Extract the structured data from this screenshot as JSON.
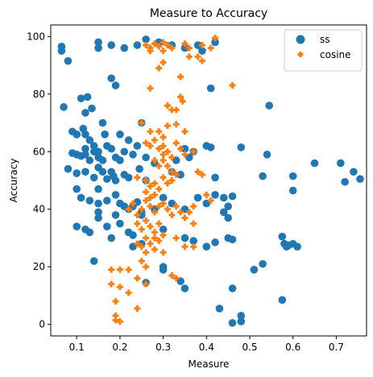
{
  "chart_data": {
    "type": "scatter",
    "title": "Measure to Accuracy",
    "xlabel": "Measure",
    "ylabel": "Accuracy",
    "xlim": [
      0.04,
      0.77
    ],
    "ylim": [
      -4,
      104
    ],
    "xticks": [
      0.1,
      0.2,
      0.3,
      0.4,
      0.5,
      0.6,
      0.7
    ],
    "xtick_labels": [
      "0.1",
      "0.2",
      "0.3",
      "0.4",
      "0.5",
      "0.6",
      "0.7"
    ],
    "yticks": [
      0,
      20,
      40,
      60,
      80,
      100
    ],
    "ytick_labels": [
      "0",
      "20",
      "40",
      "60",
      "80",
      "100"
    ],
    "grid": false,
    "legend": "top-right",
    "series": [
      {
        "name": "ss",
        "marker": "circle",
        "color": "#1f77b4",
        "points": [
          [
            0.065,
            96.5
          ],
          [
            0.065,
            95
          ],
          [
            0.08,
            91.5
          ],
          [
            0.15,
            98
          ],
          [
            0.15,
            96
          ],
          [
            0.18,
            97
          ],
          [
            0.21,
            96
          ],
          [
            0.24,
            97
          ],
          [
            0.26,
            99
          ],
          [
            0.29,
            98
          ],
          [
            0.32,
            97
          ],
          [
            0.35,
            96
          ],
          [
            0.38,
            97
          ],
          [
            0.42,
            98
          ],
          [
            0.39,
            95
          ],
          [
            0.07,
            75.5
          ],
          [
            0.11,
            78.5
          ],
          [
            0.12,
            73.5
          ],
          [
            0.125,
            79
          ],
          [
            0.135,
            75
          ],
          [
            0.18,
            85.5
          ],
          [
            0.19,
            83
          ],
          [
            0.41,
            82
          ],
          [
            0.545,
            76
          ],
          [
            0.09,
            67
          ],
          [
            0.1,
            66
          ],
          [
            0.115,
            68
          ],
          [
            0.12,
            66
          ],
          [
            0.13,
            64
          ],
          [
            0.12,
            61
          ],
          [
            0.14,
            62
          ],
          [
            0.15,
            60
          ],
          [
            0.16,
            70
          ],
          [
            0.165,
            66
          ],
          [
            0.17,
            62
          ],
          [
            0.18,
            61
          ],
          [
            0.2,
            66
          ],
          [
            0.21,
            60
          ],
          [
            0.22,
            64
          ],
          [
            0.24,
            62
          ],
          [
            0.25,
            70
          ],
          [
            0.35,
            61
          ],
          [
            0.4,
            62
          ],
          [
            0.41,
            61.5
          ],
          [
            0.48,
            61.5
          ],
          [
            0.09,
            59.5
          ],
          [
            0.1,
            59
          ],
          [
            0.11,
            58.5
          ],
          [
            0.12,
            59
          ],
          [
            0.13,
            57
          ],
          [
            0.14,
            60
          ],
          [
            0.15,
            58
          ],
          [
            0.16,
            57
          ],
          [
            0.19,
            58
          ],
          [
            0.2,
            57
          ],
          [
            0.23,
            59
          ],
          [
            0.26,
            58
          ],
          [
            0.28,
            56
          ],
          [
            0.33,
            57
          ],
          [
            0.36,
            58
          ],
          [
            0.37,
            60
          ],
          [
            0.54,
            59
          ],
          [
            0.08,
            54
          ],
          [
            0.1,
            52.5
          ],
          [
            0.12,
            53
          ],
          [
            0.14,
            51
          ],
          [
            0.15,
            54.5
          ],
          [
            0.16,
            53
          ],
          [
            0.17,
            50.5
          ],
          [
            0.18,
            53
          ],
          [
            0.185,
            51.5
          ],
          [
            0.19,
            50
          ],
          [
            0.21,
            52
          ],
          [
            0.22,
            51
          ],
          [
            0.245,
            54
          ],
          [
            0.26,
            50
          ],
          [
            0.32,
            53
          ],
          [
            0.34,
            52
          ],
          [
            0.42,
            51
          ],
          [
            0.53,
            51.5
          ],
          [
            0.6,
            51.5
          ],
          [
            0.65,
            56
          ],
          [
            0.71,
            56
          ],
          [
            0.72,
            49.5
          ],
          [
            0.74,
            53
          ],
          [
            0.755,
            50.5
          ],
          [
            0.6,
            46.5
          ],
          [
            0.1,
            47
          ],
          [
            0.11,
            44
          ],
          [
            0.13,
            43
          ],
          [
            0.15,
            47
          ],
          [
            0.15,
            42
          ],
          [
            0.17,
            43
          ],
          [
            0.19,
            45
          ],
          [
            0.2,
            42
          ],
          [
            0.21,
            41
          ],
          [
            0.22,
            40
          ],
          [
            0.23,
            41
          ],
          [
            0.24,
            42.5
          ],
          [
            0.25,
            39
          ],
          [
            0.28,
            40
          ],
          [
            0.3,
            44
          ],
          [
            0.32,
            42
          ],
          [
            0.35,
            40
          ],
          [
            0.38,
            44
          ],
          [
            0.4,
            42
          ],
          [
            0.42,
            45
          ],
          [
            0.44,
            44
          ],
          [
            0.45,
            41
          ],
          [
            0.46,
            44.5
          ],
          [
            0.44,
            39
          ],
          [
            0.45,
            37
          ],
          [
            0.1,
            34
          ],
          [
            0.12,
            33
          ],
          [
            0.13,
            32
          ],
          [
            0.15,
            37
          ],
          [
            0.15,
            39
          ],
          [
            0.17,
            34
          ],
          [
            0.19,
            38
          ],
          [
            0.2,
            35
          ],
          [
            0.22,
            32
          ],
          [
            0.23,
            31
          ],
          [
            0.25,
            28
          ],
          [
            0.25,
            38
          ],
          [
            0.3,
            33
          ],
          [
            0.35,
            30
          ],
          [
            0.37,
            29
          ],
          [
            0.4,
            27
          ],
          [
            0.42,
            28.5
          ],
          [
            0.45,
            30
          ],
          [
            0.46,
            29.5
          ],
          [
            0.18,
            30
          ],
          [
            0.23,
            27
          ],
          [
            0.575,
            30.5
          ],
          [
            0.58,
            28
          ],
          [
            0.585,
            27
          ],
          [
            0.6,
            28
          ],
          [
            0.61,
            27
          ],
          [
            0.59,
            27.5
          ],
          [
            0.53,
            21
          ],
          [
            0.51,
            19
          ],
          [
            0.575,
            8.5
          ],
          [
            0.14,
            22
          ],
          [
            0.26,
            14.5
          ],
          [
            0.3,
            20
          ],
          [
            0.3,
            19
          ],
          [
            0.34,
            15
          ],
          [
            0.35,
            12.5
          ],
          [
            0.46,
            12.5
          ],
          [
            0.43,
            5.5
          ],
          [
            0.46,
            0.5
          ],
          [
            0.48,
            3
          ],
          [
            0.48,
            1
          ]
        ]
      },
      {
        "name": "cosine",
        "marker": "plus",
        "color": "#ff7f0e",
        "points": [
          [
            0.26,
            97
          ],
          [
            0.27,
            96
          ],
          [
            0.28,
            97.5
          ],
          [
            0.29,
            96.5
          ],
          [
            0.3,
            98
          ],
          [
            0.31,
            97
          ],
          [
            0.32,
            96
          ],
          [
            0.27,
            95
          ],
          [
            0.3,
            95
          ],
          [
            0.35,
            97.5
          ],
          [
            0.36,
            96
          ],
          [
            0.39,
            97
          ],
          [
            0.42,
            99.5
          ],
          [
            0.36,
            93
          ],
          [
            0.38,
            93
          ],
          [
            0.41,
            96
          ],
          [
            0.39,
            91.5
          ],
          [
            0.3,
            91
          ],
          [
            0.34,
            86
          ],
          [
            0.29,
            89
          ],
          [
            0.27,
            82
          ],
          [
            0.46,
            83
          ],
          [
            0.34,
            79
          ],
          [
            0.345,
            77.5
          ],
          [
            0.31,
            76
          ],
          [
            0.32,
            74.5
          ],
          [
            0.33,
            74.5
          ],
          [
            0.31,
            69
          ],
          [
            0.33,
            69.5
          ],
          [
            0.35,
            67
          ],
          [
            0.29,
            67
          ],
          [
            0.3,
            65
          ],
          [
            0.25,
            70
          ],
          [
            0.27,
            67
          ],
          [
            0.26,
            63
          ],
          [
            0.27,
            62
          ],
          [
            0.28,
            64
          ],
          [
            0.29,
            61
          ],
          [
            0.3,
            59
          ],
          [
            0.3,
            62
          ],
          [
            0.31,
            60
          ],
          [
            0.32,
            58
          ],
          [
            0.33,
            63
          ],
          [
            0.34,
            61
          ],
          [
            0.35,
            59
          ],
          [
            0.37,
            60
          ],
          [
            0.28,
            57
          ],
          [
            0.29,
            55
          ],
          [
            0.3,
            57
          ],
          [
            0.31,
            55
          ],
          [
            0.32,
            53
          ],
          [
            0.24,
            51
          ],
          [
            0.26,
            50
          ],
          [
            0.27,
            48
          ],
          [
            0.28,
            49
          ],
          [
            0.29,
            47
          ],
          [
            0.3,
            51
          ],
          [
            0.31,
            49
          ],
          [
            0.32,
            50
          ],
          [
            0.33,
            52
          ],
          [
            0.38,
            53
          ],
          [
            0.39,
            52
          ],
          [
            0.26,
            46
          ],
          [
            0.27,
            44
          ],
          [
            0.28,
            45
          ],
          [
            0.22,
            40
          ],
          [
            0.23,
            42
          ],
          [
            0.24,
            38
          ],
          [
            0.25,
            40
          ],
          [
            0.26,
            43
          ],
          [
            0.27,
            41
          ],
          [
            0.28,
            39
          ],
          [
            0.29,
            41
          ],
          [
            0.3,
            42
          ],
          [
            0.31,
            40
          ],
          [
            0.32,
            38
          ],
          [
            0.33,
            41
          ],
          [
            0.34,
            39
          ],
          [
            0.35,
            37
          ],
          [
            0.36,
            39
          ],
          [
            0.37,
            41
          ],
          [
            0.4,
            45
          ],
          [
            0.41,
            43
          ],
          [
            0.24,
            35
          ],
          [
            0.25,
            33
          ],
          [
            0.26,
            36
          ],
          [
            0.27,
            34
          ],
          [
            0.28,
            32
          ],
          [
            0.29,
            35
          ],
          [
            0.3,
            31
          ],
          [
            0.26,
            30
          ],
          [
            0.27,
            28
          ],
          [
            0.28,
            30
          ],
          [
            0.29,
            29
          ],
          [
            0.25,
            27
          ],
          [
            0.26,
            25
          ],
          [
            0.24,
            28
          ],
          [
            0.28,
            26
          ],
          [
            0.3,
            25
          ],
          [
            0.33,
            30
          ],
          [
            0.35,
            27
          ],
          [
            0.37,
            27
          ],
          [
            0.37,
            35
          ],
          [
            0.18,
            19
          ],
          [
            0.2,
            19
          ],
          [
            0.22,
            19
          ],
          [
            0.25,
            22
          ],
          [
            0.26,
            20
          ],
          [
            0.32,
            17
          ],
          [
            0.33,
            16
          ],
          [
            0.18,
            14
          ],
          [
            0.2,
            13
          ],
          [
            0.22,
            11
          ],
          [
            0.26,
            14
          ],
          [
            0.19,
            8
          ],
          [
            0.19,
            3
          ],
          [
            0.2,
            1
          ],
          [
            0.19,
            1.5
          ],
          [
            0.24,
            5.5
          ],
          [
            0.24,
            16
          ]
        ]
      }
    ]
  }
}
